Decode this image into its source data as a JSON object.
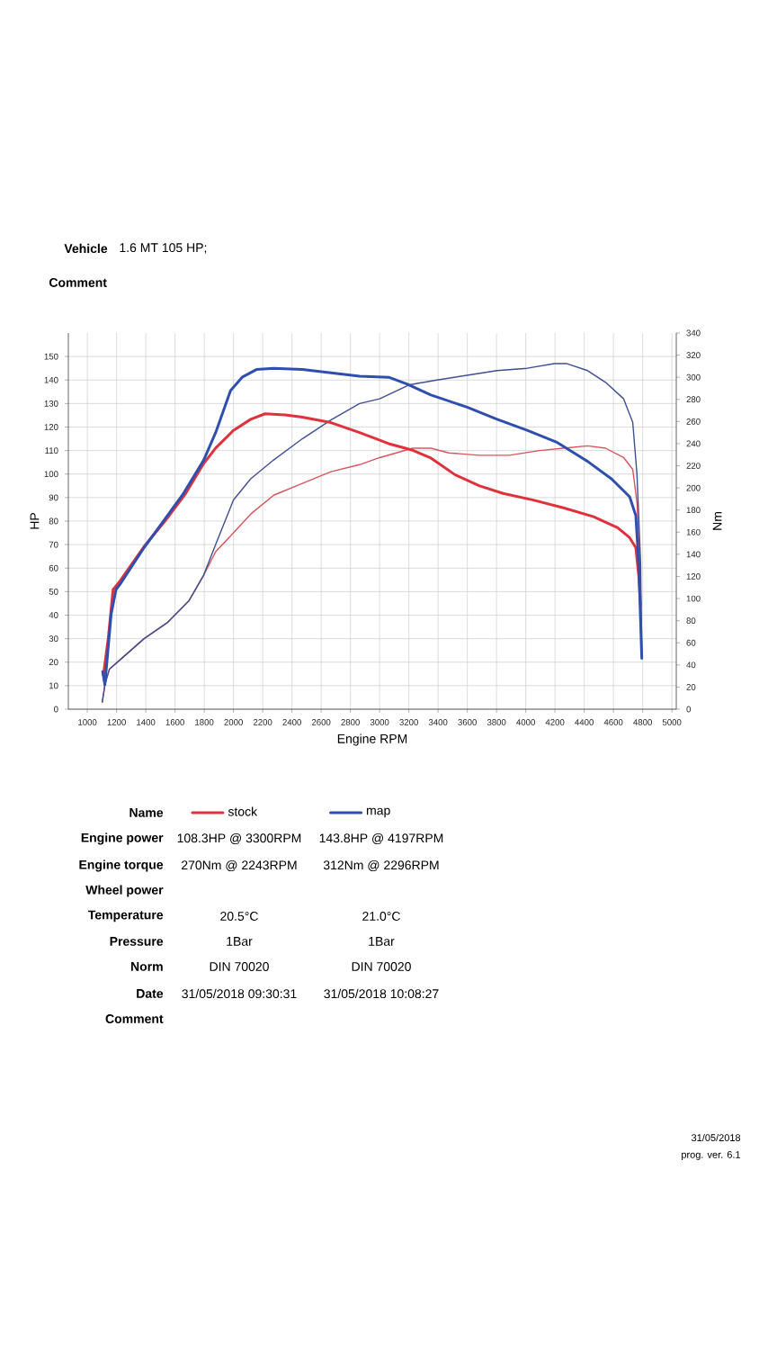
{
  "chart_data": {
    "type": "line",
    "xlabel": "Engine RPM",
    "ylabel": "HP",
    "y2label": "Nm",
    "xlim": [
      870,
      5030
    ],
    "xticks": [
      1000,
      1200,
      1400,
      1600,
      1800,
      2000,
      2200,
      2400,
      2600,
      2800,
      3000,
      3200,
      3400,
      3600,
      3800,
      4000,
      4200,
      4400,
      4600,
      4800,
      5000
    ],
    "ylim": [
      0,
      160
    ],
    "yticks": [
      0,
      10,
      20,
      30,
      40,
      50,
      60,
      70,
      80,
      90,
      100,
      110,
      120,
      130,
      140,
      150
    ],
    "y2lim": [
      0,
      340
    ],
    "y2ticks": [
      0,
      20,
      40,
      60,
      80,
      100,
      120,
      140,
      160,
      180,
      200,
      220,
      240,
      260,
      280,
      300,
      320,
      340
    ],
    "grid": true,
    "legend": "bottom",
    "line_style": "solid",
    "series": [
      {
        "name": "stock",
        "color": "#e0323c",
        "axis": "y2",
        "x": [
          1110,
          1143,
          1176,
          1224,
          1388,
          1531,
          1673,
          1796,
          1878,
          2000,
          2118,
          2216,
          2353,
          2471,
          2667,
          2863,
          3062,
          3227,
          3351,
          3515,
          3680,
          3845,
          4052,
          4258,
          4464,
          4629,
          4711,
          4753,
          4773,
          4786
        ],
        "values": [
          31,
          64,
          108,
          116,
          147,
          170,
          195,
          222,
          236,
          252,
          262,
          267,
          266,
          264,
          259,
          250,
          240,
          234,
          227,
          212,
          202,
          195,
          189,
          182,
          174,
          164,
          155,
          146,
          121,
          94
        ]
      },
      {
        "name": "map",
        "color": "#2f4fae",
        "axis": "y2",
        "x": [
          1105,
          1120,
          1163,
          1196,
          1224,
          1388,
          1510,
          1653,
          1796,
          1878,
          1980,
          2059,
          2157,
          2275,
          2471,
          2667,
          2863,
          3062,
          3186,
          3351,
          3598,
          3804,
          4010,
          4216,
          4423,
          4588,
          4711,
          4753,
          4773,
          4794
        ],
        "values": [
          34,
          22,
          86,
          108,
          113,
          146,
          168,
          194,
          225,
          250,
          288,
          300,
          307,
          308,
          307,
          304,
          301,
          300,
          294,
          284,
          273,
          262,
          252,
          241,
          224,
          208,
          192,
          175,
          132,
          46
        ]
      },
      {
        "color": "#d9545e",
        "axis": "y",
        "x": [
          1102,
          1122,
          1151,
          1224,
          1388,
          1551,
          1694,
          1796,
          1878,
          2000,
          2118,
          2275,
          2471,
          2667,
          2863,
          3000,
          3227,
          3351,
          3474,
          3680,
          3887,
          4093,
          4258,
          4423,
          4546,
          4670,
          4732,
          4761,
          4777,
          4786
        ],
        "values": [
          3,
          11,
          17,
          21,
          30,
          37,
          46,
          57,
          67,
          75,
          83,
          91,
          96,
          101,
          104,
          107,
          111,
          111,
          109,
          108,
          108,
          110,
          111,
          112,
          111,
          107,
          102,
          88,
          67,
          55
        ]
      },
      {
        "color": "#3f4f92",
        "axis": "y",
        "x": [
          1102,
          1122,
          1151,
          1224,
          1388,
          1551,
          1694,
          1796,
          1878,
          2000,
          2118,
          2275,
          2471,
          2667,
          2863,
          3000,
          3206,
          3392,
          3598,
          3804,
          4010,
          4196,
          4278,
          4423,
          4546,
          4670,
          4732,
          4761,
          4786,
          4794
        ],
        "values": [
          3,
          11,
          17,
          21,
          30,
          37,
          46,
          57,
          70,
          89,
          98,
          106,
          115,
          123,
          130,
          132,
          138,
          140,
          142,
          144,
          145,
          147,
          147,
          144,
          139,
          132,
          122,
          100,
          62,
          22
        ]
      }
    ],
    "annotations": [
      "Vehicle",
      "1.6 MT 105 HP;",
      "Comment",
      "Name",
      "Engine power",
      "108.3HP @ 3300RPM",
      "143.8HP @ 4197RPM",
      "Engine torque",
      "270Nm @ 2243RPM",
      "312Nm @ 2296RPM",
      "Wheel power",
      "Temperature",
      "20.5°C",
      "21.0°C",
      "Pressure",
      "1Bar",
      "1Bar",
      "Norm",
      "DIN 70020",
      "DIN 70020",
      "Date",
      "31/05/2018 09:30:31",
      "31/05/2018 10:08:27",
      "Comment",
      "31/05/2018",
      "prog. ver. 6.1"
    ]
  }
}
